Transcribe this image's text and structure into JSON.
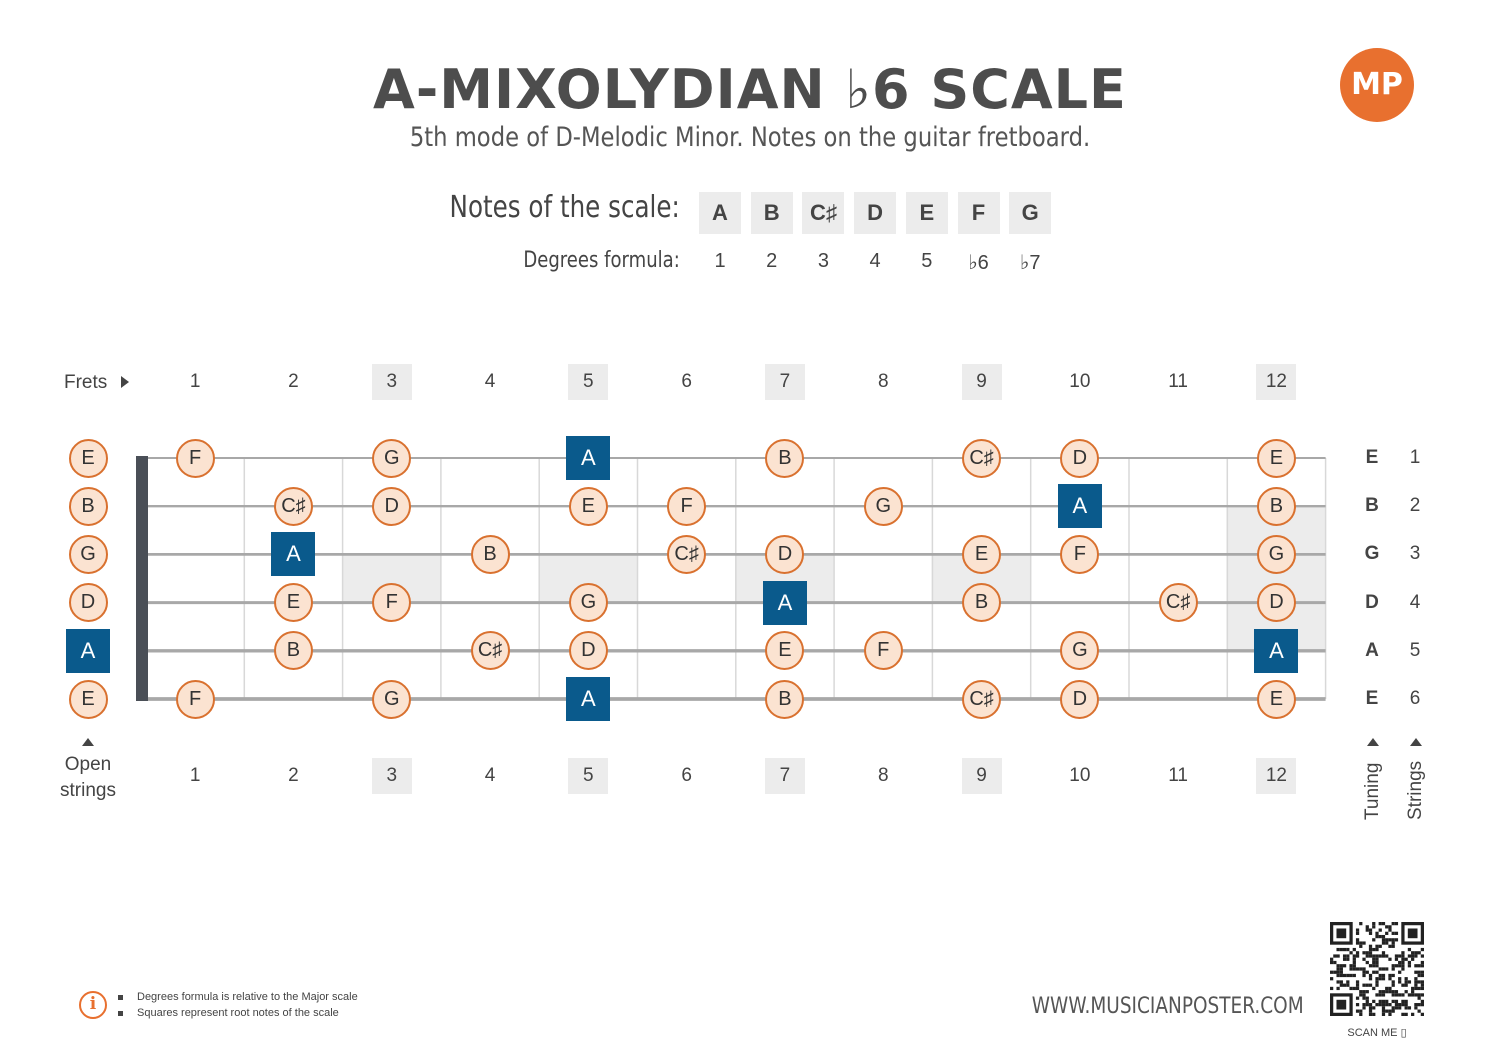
{
  "header": {
    "title": "A-MIXOLYDIAN ♭6 SCALE",
    "subtitle": "5th mode of D-Melodic Minor. Notes on the guitar fretboard.",
    "logo_text": "MP"
  },
  "scale": {
    "notes_label": "Notes of the scale:",
    "degrees_label": "Degrees formula:",
    "notes": [
      "A",
      "B",
      "C♯",
      "D",
      "E",
      "F",
      "G"
    ],
    "degrees": [
      "1",
      "2",
      "3",
      "4",
      "5",
      "♭6",
      "♭7"
    ]
  },
  "fretboard": {
    "frets_label": "Frets",
    "fret_numbers": [
      "1",
      "2",
      "3",
      "4",
      "5",
      "6",
      "7",
      "8",
      "9",
      "10",
      "11",
      "12"
    ],
    "marked_frets": [
      3,
      5,
      7,
      9,
      12
    ],
    "open_strings_label": "Open strings",
    "tuning_label": "Tuning",
    "strings_label": "Strings",
    "tuning": [
      "E",
      "B",
      "G",
      "D",
      "A",
      "E"
    ],
    "string_numbers": [
      "1",
      "2",
      "3",
      "4",
      "5",
      "6"
    ],
    "strings": [
      [
        "E",
        "F",
        "",
        "G",
        "",
        "A",
        "",
        "B",
        "",
        "C♯",
        "D",
        "",
        "E"
      ],
      [
        "B",
        "",
        "C♯",
        "D",
        "",
        "E",
        "F",
        "",
        "G",
        "",
        "A",
        "",
        "B"
      ],
      [
        "G",
        "",
        "A",
        "",
        "B",
        "",
        "C♯",
        "D",
        "",
        "E",
        "F",
        "",
        "G"
      ],
      [
        "D",
        "",
        "E",
        "F",
        "",
        "G",
        "",
        "A",
        "",
        "B",
        "",
        "C♯",
        "D"
      ],
      [
        "A",
        "",
        "B",
        "",
        "C♯",
        "D",
        "",
        "E",
        "F",
        "",
        "G",
        "",
        "A"
      ],
      [
        "E",
        "F",
        "",
        "G",
        "",
        "A",
        "",
        "B",
        "",
        "C♯",
        "D",
        "",
        "E"
      ]
    ],
    "root_note": "A",
    "colors": {
      "root_fill": "#0a5a8c",
      "note_fill": "#fbe3d1",
      "note_border": "#d9712f",
      "inlay": "#ececec",
      "string": "#a8a8a8",
      "nut": "#4a4f57"
    }
  },
  "footer": {
    "notes": [
      "Degrees formula is relative to the Major scale",
      "Squares represent root notes of the scale"
    ],
    "website": "WWW.MUSICIANPOSTER.COM",
    "scan_label": "SCAN ME"
  }
}
